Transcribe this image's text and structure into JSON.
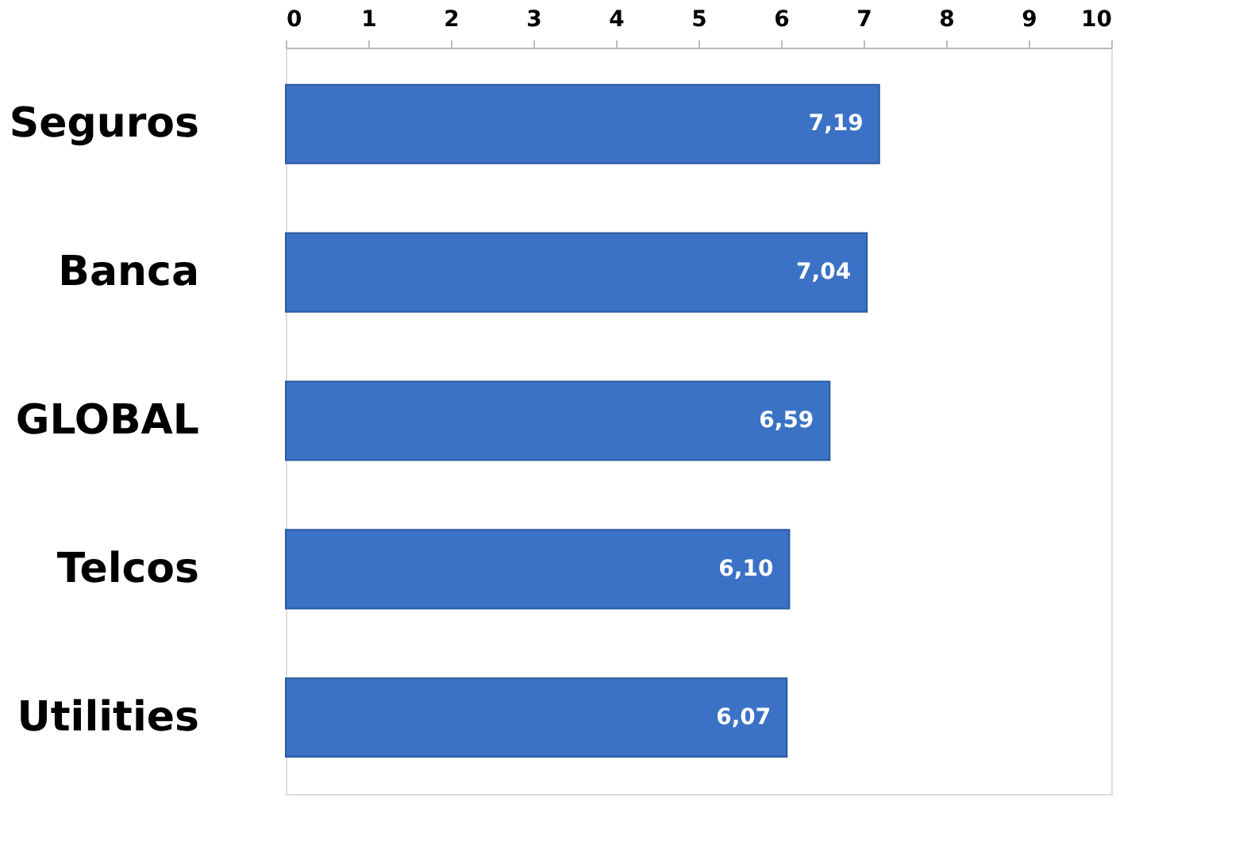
{
  "chart_data": {
    "type": "bar",
    "orientation": "horizontal",
    "categories": [
      "Seguros",
      "Banca",
      "GLOBAL",
      "Telcos",
      "Utilities"
    ],
    "values": [
      7.19,
      7.04,
      6.59,
      6.1,
      6.07
    ],
    "value_labels": [
      "7,19",
      "7,04",
      "6,59",
      "6,10",
      "6,07"
    ],
    "color": "#3b72c6",
    "xlim": [
      0,
      10
    ],
    "xticks": [
      0,
      1,
      2,
      3,
      4,
      5,
      6,
      7,
      8,
      9,
      10
    ],
    "grid": false
  }
}
